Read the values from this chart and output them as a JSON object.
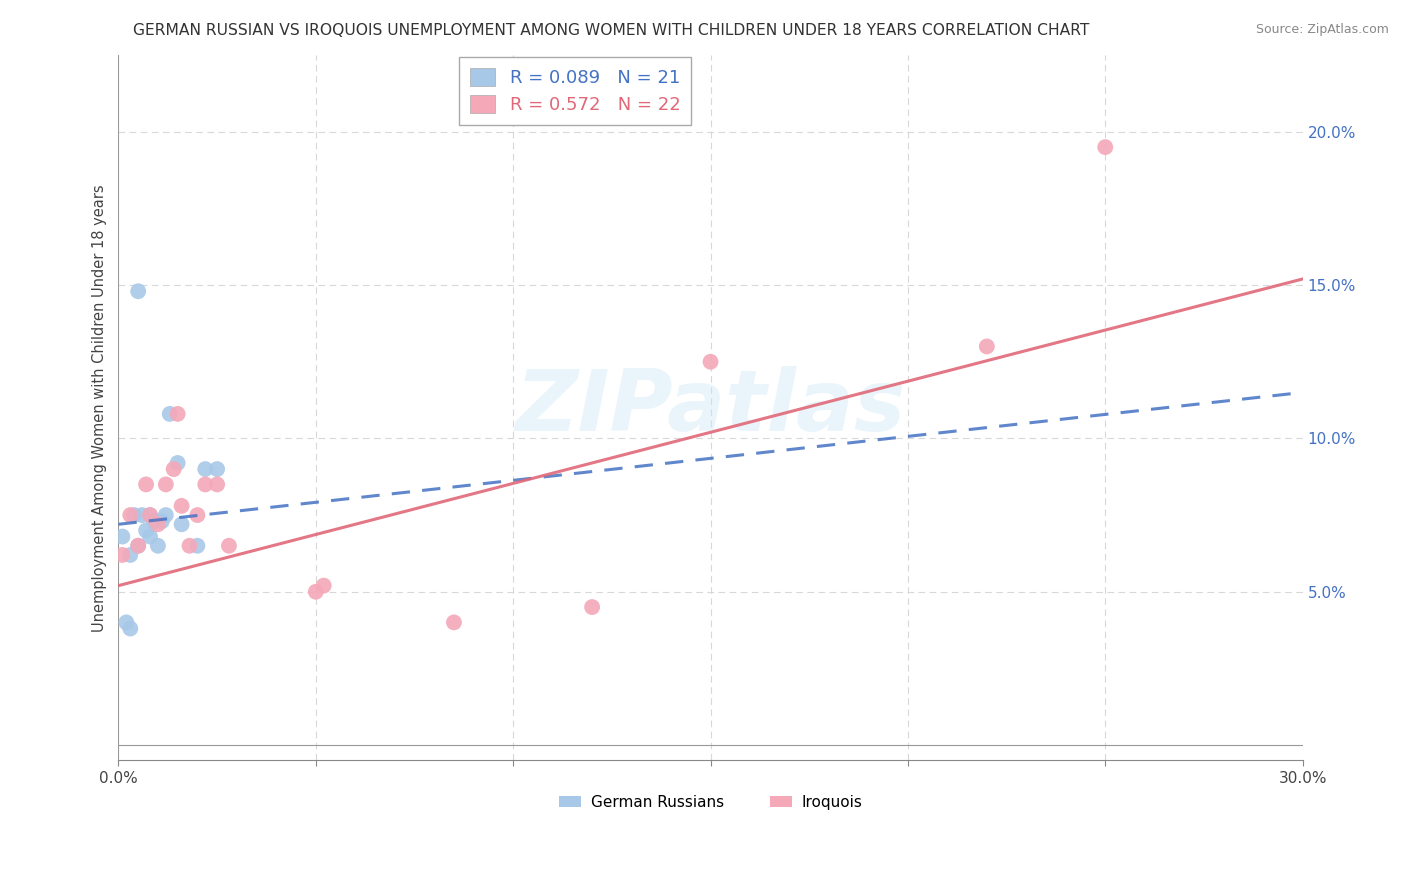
{
  "title": "GERMAN RUSSIAN VS IROQUOIS UNEMPLOYMENT AMONG WOMEN WITH CHILDREN UNDER 18 YEARS CORRELATION CHART",
  "source": "Source: ZipAtlas.com",
  "ylabel": "Unemployment Among Women with Children Under 18 years",
  "xlim": [
    0.0,
    0.3
  ],
  "ylim": [
    -0.005,
    0.225
  ],
  "x_ticks": [
    0.0,
    0.05,
    0.1,
    0.15,
    0.2,
    0.25,
    0.3
  ],
  "x_tick_labels": [
    "0.0%",
    "",
    "",
    "",
    "",
    "",
    "30.0%"
  ],
  "y_ticks_right": [
    0.0,
    0.05,
    0.1,
    0.15,
    0.2
  ],
  "y_labels_right": [
    "",
    "5.0%",
    "10.0%",
    "15.0%",
    "20.0%"
  ],
  "legend_r_blue": "0.089",
  "legend_n_blue": "21",
  "legend_r_pink": "0.572",
  "legend_n_pink": "22",
  "legend_label_blue": "German Russians",
  "legend_label_pink": "Iroquois",
  "blue_scatter_color": "#a8c8e8",
  "pink_scatter_color": "#f4a8b8",
  "blue_line_color": "#4472c4",
  "pink_line_color": "#e06878",
  "watermark": "ZIPatlas",
  "background_color": "#ffffff",
  "gr_x": [
    0.001,
    0.002,
    0.003,
    0.003,
    0.004,
    0.005,
    0.006,
    0.007,
    0.008,
    0.008,
    0.009,
    0.01,
    0.011,
    0.012,
    0.013,
    0.015,
    0.016,
    0.02,
    0.022,
    0.025,
    0.005
  ],
  "gr_y": [
    0.068,
    0.04,
    0.038,
    0.062,
    0.075,
    0.065,
    0.075,
    0.07,
    0.075,
    0.068,
    0.073,
    0.065,
    0.073,
    0.075,
    0.108,
    0.092,
    0.072,
    0.065,
    0.09,
    0.09,
    0.148
  ],
  "iq_x": [
    0.001,
    0.003,
    0.005,
    0.007,
    0.008,
    0.01,
    0.012,
    0.014,
    0.015,
    0.016,
    0.018,
    0.02,
    0.022,
    0.025,
    0.028,
    0.05,
    0.052,
    0.085,
    0.12,
    0.15,
    0.22,
    0.25
  ],
  "iq_y": [
    0.062,
    0.075,
    0.065,
    0.085,
    0.075,
    0.072,
    0.085,
    0.09,
    0.108,
    0.078,
    0.065,
    0.075,
    0.085,
    0.085,
    0.065,
    0.05,
    0.052,
    0.04,
    0.045,
    0.125,
    0.13,
    0.195
  ],
  "blue_line_x0": 0.0,
  "blue_line_y0": 0.072,
  "blue_line_x1": 0.3,
  "blue_line_y1": 0.115,
  "pink_line_x0": 0.0,
  "pink_line_y0": 0.052,
  "pink_line_x1": 0.3,
  "pink_line_y1": 0.152
}
